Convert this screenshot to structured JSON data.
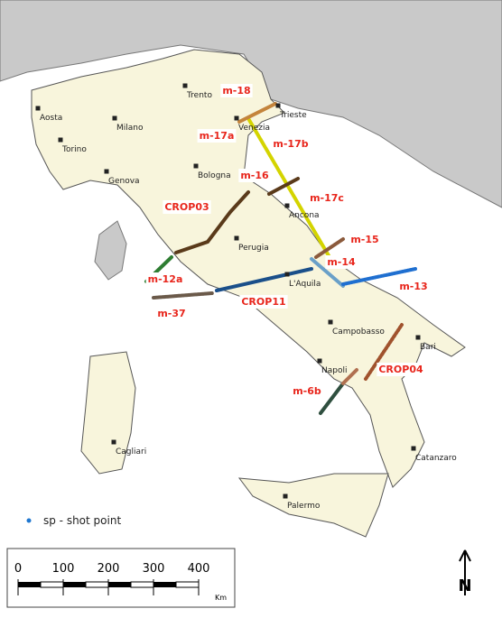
{
  "cities": [
    "Trento",
    "Aosta",
    "Milano",
    "Torino",
    "Genova",
    "Bologna",
    "Trieste",
    "Venezia",
    "Ancona",
    "Perugia",
    "L'Aquila",
    "Campobasso",
    "Bari",
    "Napoli",
    "Catanzaro",
    "Cagliari",
    "Palermo"
  ],
  "profiles": [
    "m-18",
    "m-17a",
    "m-17b",
    "m-16",
    "m-17c",
    "CROP03",
    "m-15",
    "m-14",
    "m-13",
    "m-12a",
    "m-37",
    "CROP11",
    "CROP04",
    "m-6b"
  ],
  "legend": {
    "label": "sp - shot point"
  },
  "scale_bar": {
    "ticks": [
      0,
      100,
      200,
      300,
      400
    ],
    "unit": "Km"
  },
  "north": "N"
}
